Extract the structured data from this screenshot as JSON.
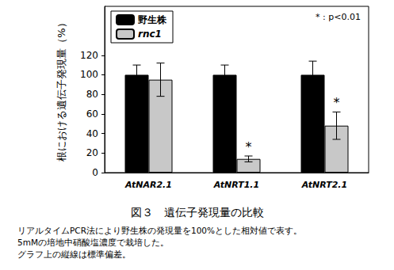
{
  "chart_data": {
    "type": "bar",
    "y_label": "根における遺伝子発現量（%）",
    "categories": [
      "AtNAR2.1",
      "AtNRT1.1",
      "AtNRT2.1"
    ],
    "series": [
      {
        "name": "野生株",
        "color": "#000000",
        "values": [
          100,
          100,
          100
        ],
        "errors": [
          10,
          10,
          14
        ]
      },
      {
        "name": "rnc1",
        "color": "#c8c8c8",
        "values": [
          95,
          14,
          48
        ],
        "errors": [
          17,
          3,
          14
        ],
        "significance": [
          null,
          "*",
          "*"
        ]
      }
    ],
    "ylim": [
      0,
      170
    ],
    "yticks": [
      0,
      20,
      40,
      60,
      80,
      100,
      120
    ],
    "grid": false,
    "legend": "upper left",
    "annotations": [
      "* : p<0.01"
    ],
    "caption": {
      "title": "図３　遺伝子発現量の比較",
      "notes": [
        "リアルタイムPCR法により野生株の発現量を100%とした相対値で表す。",
        "5mMの培地中硝酸塩濃度で栽培した。",
        "グラフ上の縦線は標準偏差。"
      ]
    }
  }
}
